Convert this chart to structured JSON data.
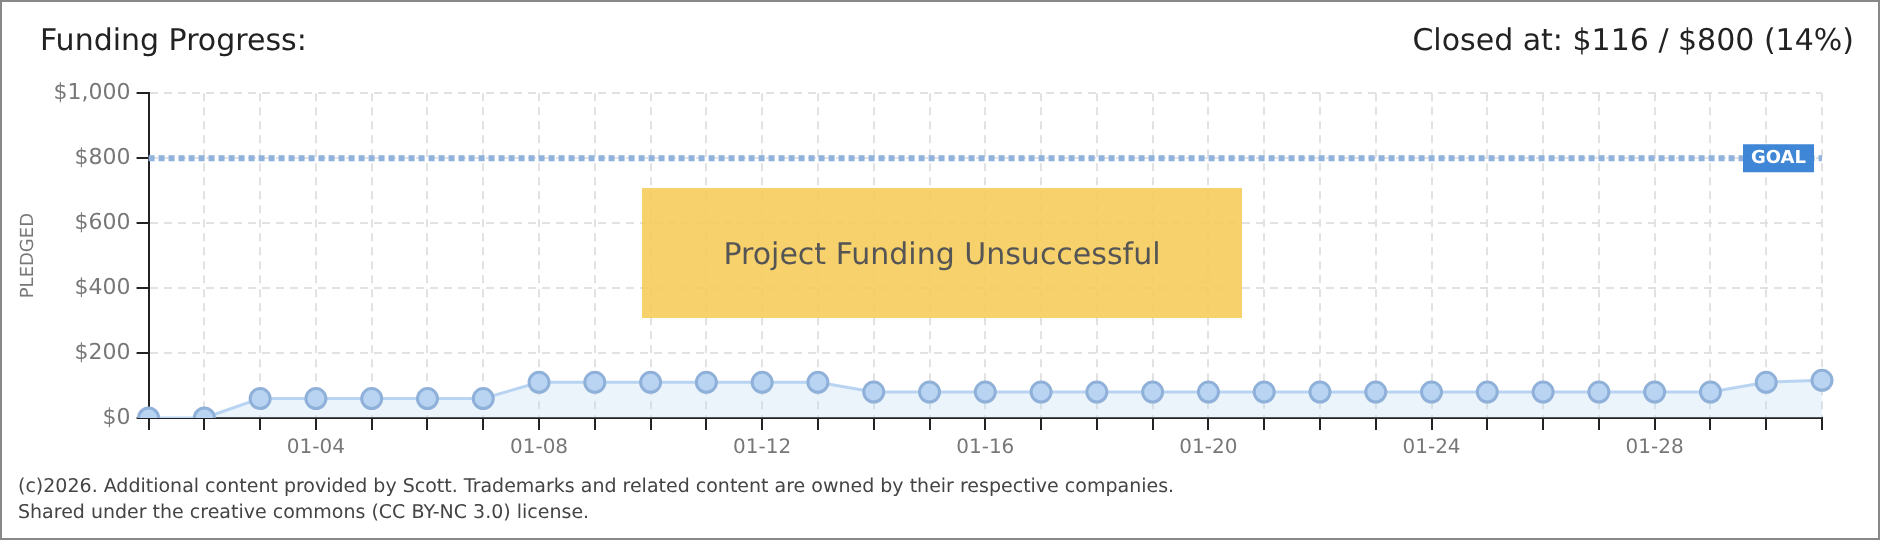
{
  "chart_data": {
    "type": "area",
    "title": "Funding Progress:",
    "subtitle": "Closed at: $116 / $800 (14%)",
    "ylabel": "PLEDGED",
    "categories": [
      null,
      null,
      null,
      "01-04",
      null,
      null,
      null,
      "01-08",
      null,
      null,
      null,
      "01-12",
      null,
      null,
      null,
      "01-16",
      null,
      null,
      null,
      "01-20",
      null,
      null,
      null,
      "01-24",
      null,
      null,
      null,
      "01-28",
      null,
      null,
      null
    ],
    "series": [
      {
        "color": "#b8d4f2",
        "values": [
          0,
          0,
          60,
          60,
          60,
          60,
          60,
          110,
          110,
          110,
          110,
          110,
          110,
          80,
          80,
          80,
          80,
          80,
          80,
          80,
          80,
          80,
          80,
          80,
          80,
          80,
          80,
          80,
          80,
          110,
          116
        ]
      }
    ],
    "ylim": [
      0,
      1000
    ],
    "yticks": [
      {
        "value": 0,
        "label": "$0"
      },
      {
        "value": 200,
        "label": "$200"
      },
      {
        "value": 400,
        "label": "$400"
      },
      {
        "value": 600,
        "label": "$600"
      },
      {
        "value": 800,
        "label": "$800"
      },
      {
        "value": 1000,
        "label": "$1,000"
      }
    ],
    "ref_lines": [
      {
        "axis": "y",
        "value": 800,
        "label": "GOAL",
        "color": "#8fb3dc",
        "line_style": "dotted"
      }
    ],
    "annotations": [
      "Project Funding Unsuccessful",
      "(c)2026. Additional content provided by Scott. Trademarks and related content are owned by their respective companies.",
      "Shared under the creative commons (CC BY-NC 3.0) license."
    ],
    "grid": true,
    "legend": false,
    "marker": "circle",
    "line_style": "solid"
  }
}
